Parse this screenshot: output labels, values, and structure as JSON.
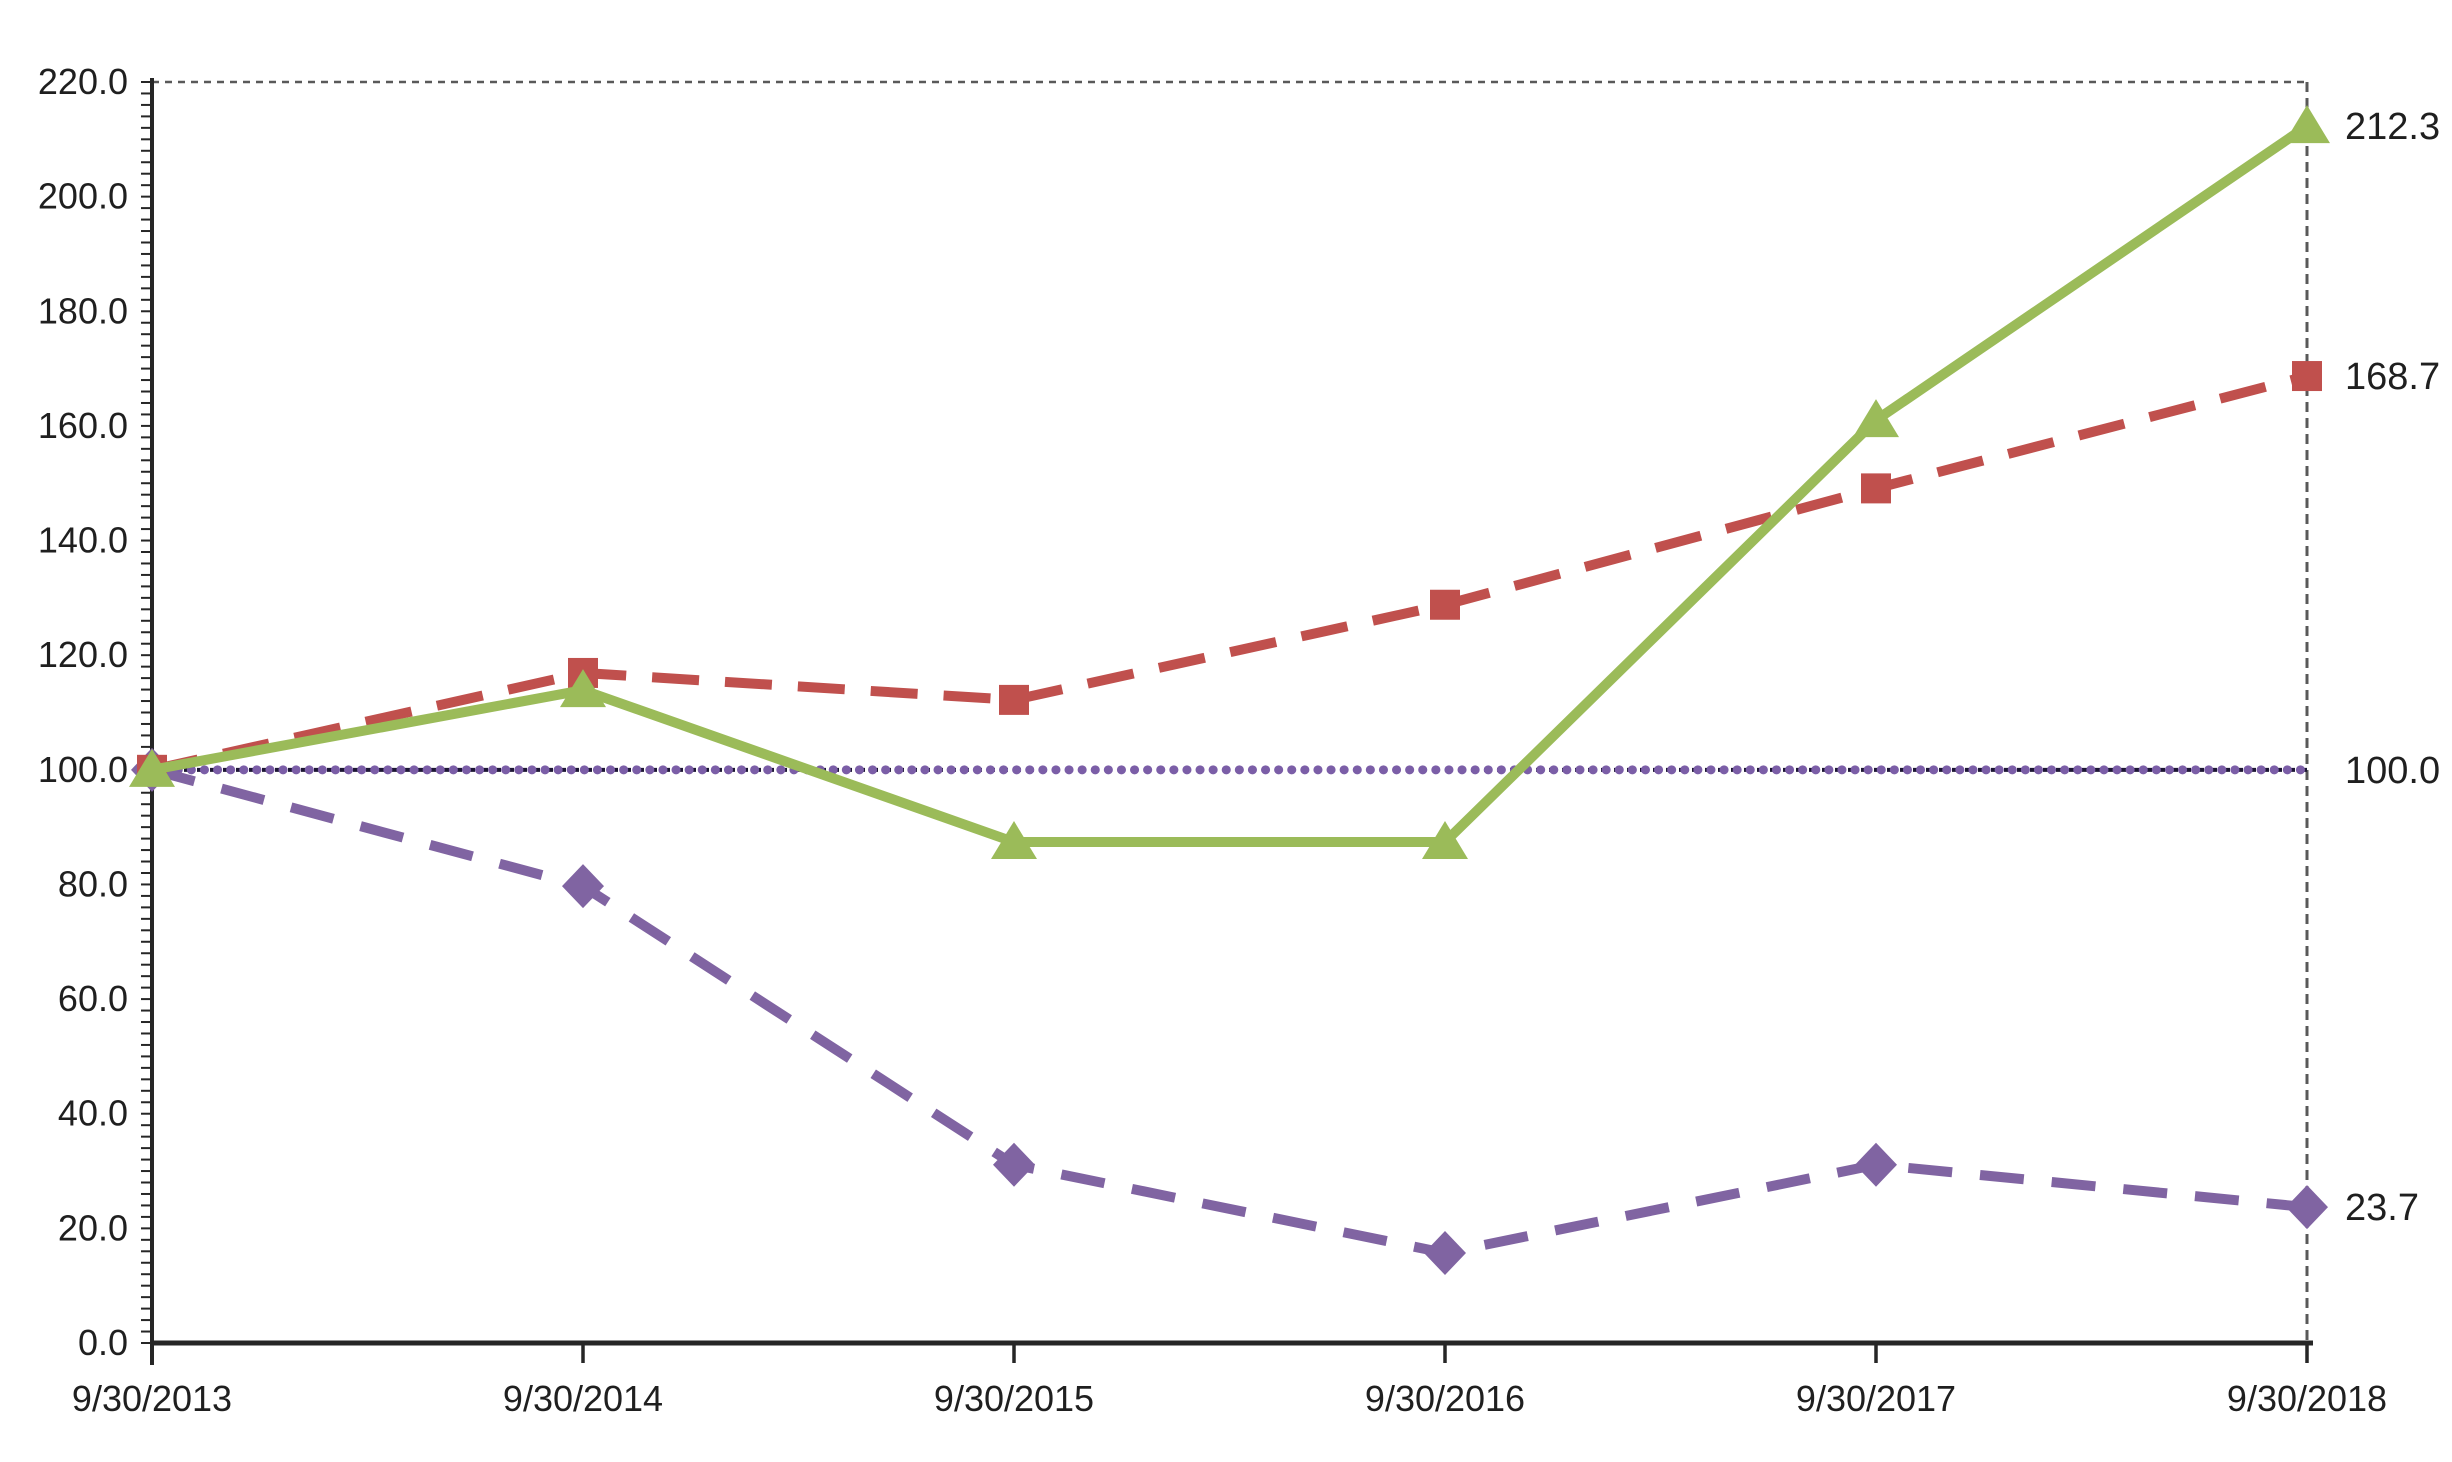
{
  "chart_data": {
    "type": "line",
    "title": "",
    "xlabel": "",
    "ylabel": "",
    "x_categories": [
      "9/30/2013",
      "9/30/2014",
      "9/30/2015",
      "9/30/2016",
      "9/30/2017",
      "9/30/2018"
    ],
    "series": [
      {
        "name": "series-purple-diamond-dashed",
        "marker": "diamond",
        "line_style": "dashed",
        "color": "#8064A2",
        "values": [
          100.0,
          79.7,
          31.1,
          15.7,
          31.1,
          23.7
        ],
        "end_label": "23.7"
      },
      {
        "name": "series-red-square-dashed",
        "marker": "square",
        "line_style": "dashed",
        "color": "#C0504D",
        "values": [
          100.0,
          116.9,
          112.2,
          128.8,
          149.1,
          168.7
        ],
        "end_label": "168.7"
      },
      {
        "name": "series-green-triangle-solid",
        "marker": "triangle",
        "line_style": "solid",
        "color": "#9BBB59",
        "values": [
          100.0,
          113.9,
          87.4,
          87.4,
          161.0,
          212.3
        ],
        "end_label": "212.3"
      }
    ],
    "baseline": {
      "value": 100.0,
      "end_label": "100.0",
      "style": "dot-dash",
      "dot_color": "#7B5EA7",
      "dash_color": "#1C1633"
    },
    "ylim": [
      0,
      220
    ],
    "y_major_step": 20,
    "y_minor_step": 2,
    "y_tick_labels": [
      "0.0",
      "20.0",
      "40.0",
      "60.0",
      "80.0",
      "100.0",
      "120.0",
      "140.0",
      "160.0",
      "180.0",
      "200.0",
      "220.0"
    ],
    "legend": "none",
    "grid": "top and right dashed plot border only",
    "axis_color": "#262626",
    "border_color": "#595959",
    "label_color": "#1f1f1f"
  }
}
